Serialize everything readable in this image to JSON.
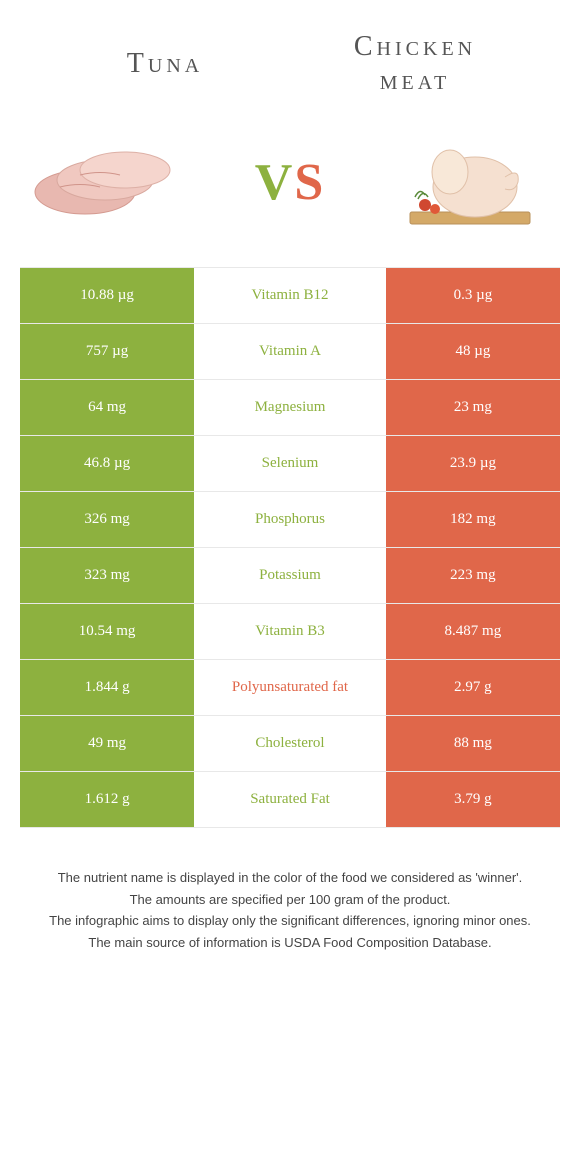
{
  "header": {
    "left": "Tuna",
    "right_line1": "Chicken",
    "right_line2": "meat"
  },
  "vs": {
    "v": "V",
    "s": "S"
  },
  "colors": {
    "green": "#8db13f",
    "orange": "#e0674a"
  },
  "rows": [
    {
      "left": "10.88 µg",
      "mid": "Vitamin B12",
      "right": "0.3 µg",
      "winner": "left"
    },
    {
      "left": "757 µg",
      "mid": "Vitamin A",
      "right": "48 µg",
      "winner": "left"
    },
    {
      "left": "64 mg",
      "mid": "Magnesium",
      "right": "23 mg",
      "winner": "left"
    },
    {
      "left": "46.8 µg",
      "mid": "Selenium",
      "right": "23.9 µg",
      "winner": "left"
    },
    {
      "left": "326 mg",
      "mid": "Phosphorus",
      "right": "182 mg",
      "winner": "left"
    },
    {
      "left": "323 mg",
      "mid": "Potassium",
      "right": "223 mg",
      "winner": "left"
    },
    {
      "left": "10.54 mg",
      "mid": "Vitamin B3",
      "right": "8.487 mg",
      "winner": "left"
    },
    {
      "left": "1.844 g",
      "mid": "Polyunsaturated fat",
      "right": "2.97 g",
      "winner": "right"
    },
    {
      "left": "49 mg",
      "mid": "Cholesterol",
      "right": "88 mg",
      "winner": "left"
    },
    {
      "left": "1.612 g",
      "mid": "Saturated Fat",
      "right": "3.79 g",
      "winner": "left"
    }
  ],
  "footnotes": {
    "l1": "The nutrient name is displayed in the color of the food we considered as 'winner'.",
    "l2": "The amounts are specified per 100 gram of the product.",
    "l3": "The infographic aims to display only the significant differences, ignoring minor ones.",
    "l4": "The main source of information is USDA Food Composition Database."
  }
}
